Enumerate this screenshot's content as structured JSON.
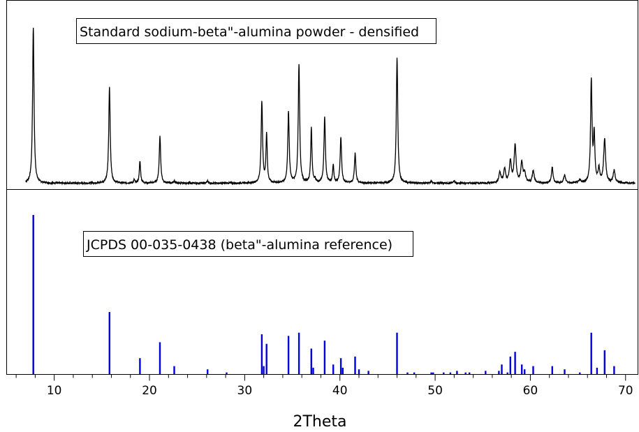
{
  "chart_data": [
    {
      "type": "line",
      "panel": "top",
      "label": "Standard sodium-beta\"-alumina powder - densified",
      "line_color": "#000000",
      "baseline": 2,
      "ylim": [
        0,
        100
      ],
      "peaks": [
        {
          "x": 7.8,
          "y": 100,
          "w": 0.09
        },
        {
          "x": 15.8,
          "y": 62,
          "w": 0.09
        },
        {
          "x": 18.4,
          "y": 2,
          "w": 0.08
        },
        {
          "x": 19.0,
          "y": 14,
          "w": 0.08
        },
        {
          "x": 21.1,
          "y": 30,
          "w": 0.09
        },
        {
          "x": 22.6,
          "y": 1.5,
          "w": 0.08
        },
        {
          "x": 26.1,
          "y": 1.5,
          "w": 0.08
        },
        {
          "x": 31.8,
          "y": 52,
          "w": 0.09
        },
        {
          "x": 32.3,
          "y": 31,
          "w": 0.08
        },
        {
          "x": 34.6,
          "y": 46,
          "w": 0.09
        },
        {
          "x": 35.7,
          "y": 76,
          "w": 0.09
        },
        {
          "x": 37.0,
          "y": 35,
          "w": 0.08
        },
        {
          "x": 37.4,
          "y": 2,
          "w": 0.08
        },
        {
          "x": 38.4,
          "y": 42,
          "w": 0.09
        },
        {
          "x": 39.3,
          "y": 11,
          "w": 0.08
        },
        {
          "x": 40.1,
          "y": 29,
          "w": 0.09
        },
        {
          "x": 41.6,
          "y": 19,
          "w": 0.09
        },
        {
          "x": 46.0,
          "y": 81,
          "w": 0.09
        },
        {
          "x": 49.6,
          "y": 1.5,
          "w": 0.08
        },
        {
          "x": 52.0,
          "y": 1.5,
          "w": 0.08
        },
        {
          "x": 56.8,
          "y": 7,
          "w": 0.12
        },
        {
          "x": 57.3,
          "y": 9,
          "w": 0.12
        },
        {
          "x": 57.9,
          "y": 14,
          "w": 0.12
        },
        {
          "x": 58.4,
          "y": 24,
          "w": 0.12
        },
        {
          "x": 59.1,
          "y": 13,
          "w": 0.12
        },
        {
          "x": 59.4,
          "y": 6,
          "w": 0.12
        },
        {
          "x": 60.3,
          "y": 8,
          "w": 0.12
        },
        {
          "x": 62.3,
          "y": 10,
          "w": 0.1
        },
        {
          "x": 63.6,
          "y": 5,
          "w": 0.12
        },
        {
          "x": 65.2,
          "y": 2,
          "w": 0.12
        },
        {
          "x": 66.4,
          "y": 65,
          "w": 0.09
        },
        {
          "x": 66.7,
          "y": 30,
          "w": 0.09
        },
        {
          "x": 67.2,
          "y": 9,
          "w": 0.1
        },
        {
          "x": 67.8,
          "y": 28,
          "w": 0.12
        },
        {
          "x": 68.8,
          "y": 8,
          "w": 0.12
        }
      ]
    },
    {
      "type": "bar",
      "panel": "bottom",
      "label": "JCPDS 00-035-0438 (beta\"-alumina reference)",
      "bar_color": "#0000d8",
      "ylim": [
        0,
        100
      ],
      "x": [
        7.8,
        15.8,
        19.0,
        21.1,
        22.6,
        26.1,
        28.1,
        31.8,
        32.0,
        32.3,
        34.6,
        35.7,
        37.0,
        37.2,
        38.4,
        39.3,
        40.1,
        40.3,
        41.6,
        42.0,
        43.0,
        46.0,
        47.1,
        47.8,
        49.6,
        49.8,
        50.9,
        51.6,
        52.3,
        53.2,
        53.6,
        55.3,
        56.7,
        57.0,
        57.6,
        57.9,
        58.4,
        59.1,
        59.4,
        60.3,
        62.3,
        63.6,
        65.2,
        66.4,
        67.0,
        67.8,
        68.8
      ],
      "y": [
        100,
        39,
        10,
        20,
        5,
        3,
        1,
        25,
        5,
        19,
        24,
        26,
        16,
        4,
        21,
        6,
        10,
        4,
        11,
        3,
        2,
        26,
        1,
        1,
        1,
        1,
        1,
        1,
        2,
        1,
        1,
        2,
        2,
        6,
        1,
        11,
        14,
        6,
        3,
        5,
        5,
        3,
        1,
        26,
        4,
        15,
        5
      ]
    }
  ],
  "x_axis": {
    "label": "2Theta",
    "range": [
      5,
      71.3
    ],
    "ticks": [
      {
        "value": 10,
        "label": "10"
      },
      {
        "value": 20,
        "label": "20"
      },
      {
        "value": 30,
        "label": "30"
      },
      {
        "value": 40,
        "label": "40"
      },
      {
        "value": 50,
        "label": "50"
      },
      {
        "value": 60,
        "label": "60"
      },
      {
        "value": 70,
        "label": "70"
      }
    ],
    "minor_step": 2
  }
}
